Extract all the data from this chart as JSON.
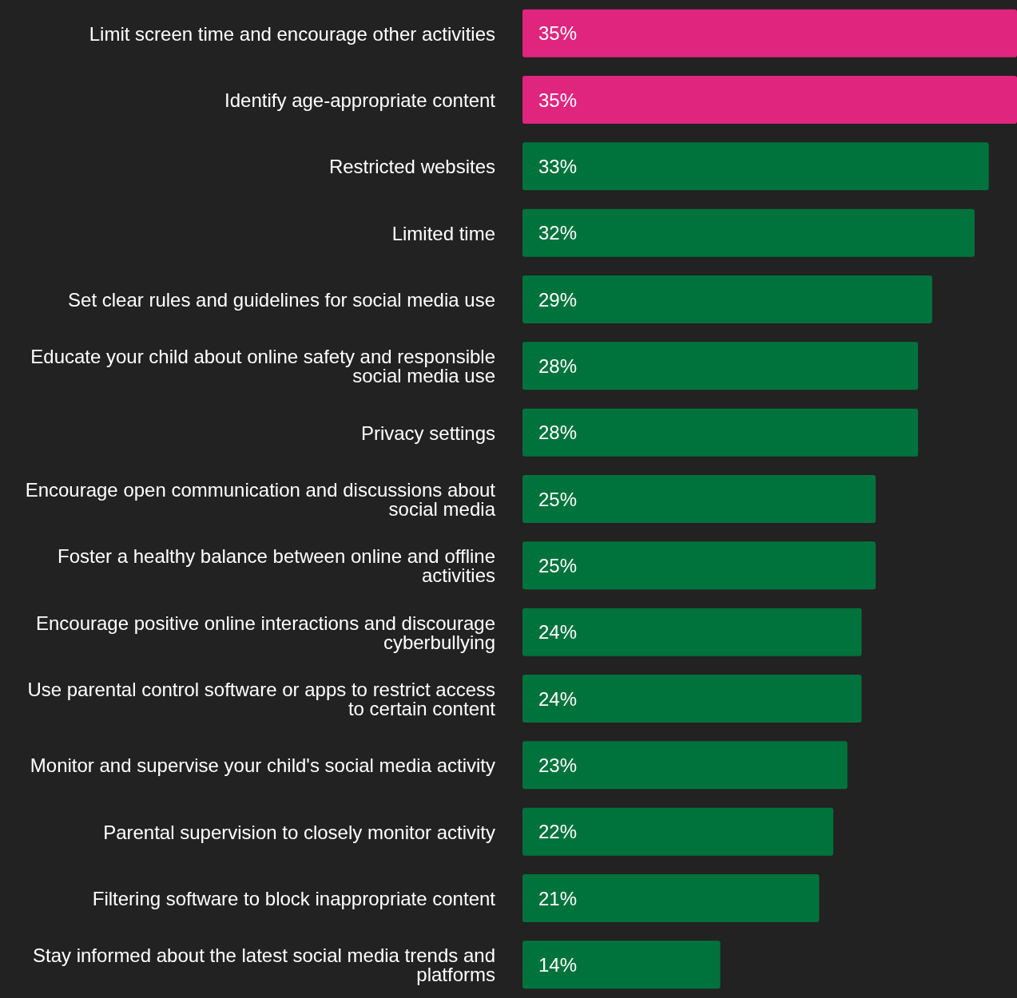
{
  "chart_data": {
    "type": "bar",
    "orientation": "horizontal",
    "categories": [
      "Limit screen time and encourage other activities",
      "Identify age-appropriate content",
      "Restricted websites",
      "Limited time",
      "Set clear rules and guidelines for social media use",
      "Educate your child about online safety and responsible social media use",
      "Privacy settings",
      "Encourage open communication and discussions about social media",
      "Foster a healthy balance between online and offline activities",
      "Encourage positive online interactions and discourage cyberbullying",
      "Use parental control software or apps to restrict access to certain content",
      "Monitor and supervise your child's social media activity",
      "Parental supervision to closely monitor activity",
      "Filtering software to block inappropriate content",
      "Stay informed about the latest social media trends and platforms"
    ],
    "values": [
      35,
      35,
      33,
      32,
      29,
      28,
      28,
      25,
      25,
      24,
      24,
      23,
      22,
      21,
      14
    ],
    "value_labels": [
      "35%",
      "35%",
      "33%",
      "32%",
      "29%",
      "28%",
      "28%",
      "25%",
      "25%",
      "24%",
      "24%",
      "23%",
      "22%",
      "21%",
      "14%"
    ],
    "colors": [
      "#e0257f",
      "#e0257f",
      "#00733c",
      "#00733c",
      "#00733c",
      "#00733c",
      "#00733c",
      "#00733c",
      "#00733c",
      "#00733c",
      "#00733c",
      "#00733c",
      "#00733c",
      "#00733c",
      "#00733c"
    ]
  }
}
